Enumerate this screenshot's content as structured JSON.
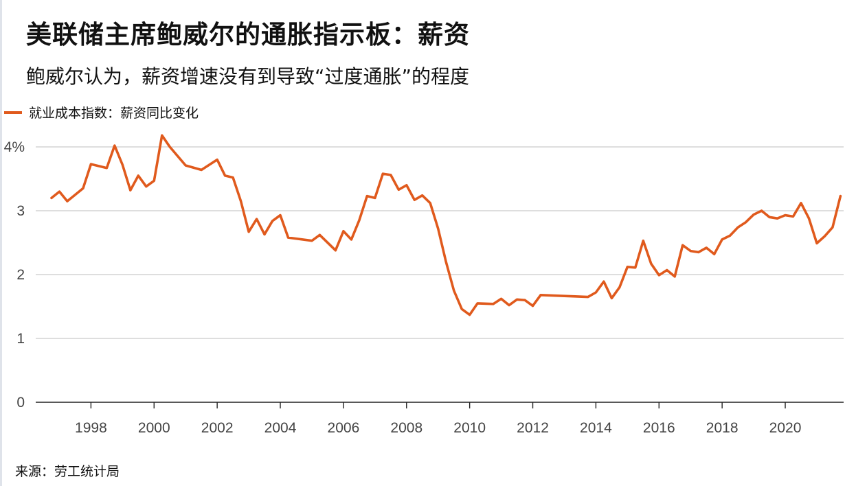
{
  "title": "美联储主席鲍威尔的通胀指示板：薪资",
  "subtitle": "鲍威尔认为，薪资增速没有到导致“过度通胀”的程度",
  "legend_label": "就业成本指数：薪资同比变化",
  "source": "来源：劳工统计局",
  "colors": {
    "series": "#e05a1d",
    "grid": "#c9c9c9",
    "axis": "#222222"
  },
  "chart_data": {
    "type": "line",
    "xlim": [
      1996.25,
      2021.85
    ],
    "ylim": [
      0,
      4
    ],
    "x_ticks": [
      1998,
      2000,
      2002,
      2004,
      2006,
      2008,
      2010,
      2012,
      2014,
      2016,
      2018,
      2020
    ],
    "y_ticks": [
      0,
      1,
      2,
      3,
      4
    ],
    "y_tick_labels": [
      "0",
      "1",
      "2",
      "3",
      "4%"
    ],
    "grid": "horizontal",
    "series": [
      {
        "name": "就业成本指数：薪资同比变化",
        "points": [
          [
            1996.75,
            3.2
          ],
          [
            1997.0,
            3.3
          ],
          [
            1997.25,
            3.15
          ],
          [
            1997.75,
            3.35
          ],
          [
            1998.0,
            3.73
          ],
          [
            1998.5,
            3.67
          ],
          [
            1998.75,
            4.02
          ],
          [
            1999.0,
            3.72
          ],
          [
            1999.25,
            3.32
          ],
          [
            1999.5,
            3.55
          ],
          [
            1999.75,
            3.38
          ],
          [
            2000.0,
            3.47
          ],
          [
            2000.25,
            4.18
          ],
          [
            2000.5,
            4.0
          ],
          [
            2001.0,
            3.71
          ],
          [
            2001.5,
            3.64
          ],
          [
            2002.0,
            3.8
          ],
          [
            2002.25,
            3.55
          ],
          [
            2002.5,
            3.52
          ],
          [
            2002.75,
            3.15
          ],
          [
            2003.0,
            2.67
          ],
          [
            2003.25,
            2.87
          ],
          [
            2003.5,
            2.63
          ],
          [
            2003.75,
            2.84
          ],
          [
            2004.0,
            2.93
          ],
          [
            2004.25,
            2.58
          ],
          [
            2005.0,
            2.53
          ],
          [
            2005.25,
            2.62
          ],
          [
            2005.75,
            2.38
          ],
          [
            2006.0,
            2.68
          ],
          [
            2006.25,
            2.55
          ],
          [
            2006.5,
            2.85
          ],
          [
            2006.75,
            3.23
          ],
          [
            2007.0,
            3.2
          ],
          [
            2007.25,
            3.58
          ],
          [
            2007.5,
            3.56
          ],
          [
            2007.75,
            3.33
          ],
          [
            2008.0,
            3.4
          ],
          [
            2008.25,
            3.17
          ],
          [
            2008.5,
            3.24
          ],
          [
            2008.75,
            3.12
          ],
          [
            2009.0,
            2.72
          ],
          [
            2009.25,
            2.2
          ],
          [
            2009.5,
            1.75
          ],
          [
            2009.75,
            1.46
          ],
          [
            2010.0,
            1.37
          ],
          [
            2010.25,
            1.55
          ],
          [
            2010.75,
            1.54
          ],
          [
            2011.0,
            1.62
          ],
          [
            2011.25,
            1.52
          ],
          [
            2011.5,
            1.61
          ],
          [
            2011.75,
            1.6
          ],
          [
            2012.0,
            1.51
          ],
          [
            2012.25,
            1.68
          ],
          [
            2013.75,
            1.65
          ],
          [
            2014.0,
            1.72
          ],
          [
            2014.25,
            1.89
          ],
          [
            2014.5,
            1.63
          ],
          [
            2014.75,
            1.8
          ],
          [
            2015.0,
            2.12
          ],
          [
            2015.25,
            2.11
          ],
          [
            2015.5,
            2.53
          ],
          [
            2015.75,
            2.17
          ],
          [
            2016.0,
            1.99
          ],
          [
            2016.25,
            2.07
          ],
          [
            2016.5,
            1.97
          ],
          [
            2016.75,
            2.46
          ],
          [
            2017.0,
            2.37
          ],
          [
            2017.25,
            2.35
          ],
          [
            2017.5,
            2.42
          ],
          [
            2017.75,
            2.32
          ],
          [
            2018.0,
            2.55
          ],
          [
            2018.25,
            2.61
          ],
          [
            2018.5,
            2.74
          ],
          [
            2018.75,
            2.82
          ],
          [
            2019.0,
            2.94
          ],
          [
            2019.25,
            3.0
          ],
          [
            2019.5,
            2.9
          ],
          [
            2019.75,
            2.88
          ],
          [
            2020.0,
            2.93
          ],
          [
            2020.25,
            2.91
          ],
          [
            2020.5,
            3.12
          ],
          [
            2020.75,
            2.88
          ],
          [
            2021.0,
            2.49
          ],
          [
            2021.25,
            2.6
          ],
          [
            2021.5,
            2.74
          ],
          [
            2021.75,
            3.23
          ]
        ]
      }
    ]
  }
}
